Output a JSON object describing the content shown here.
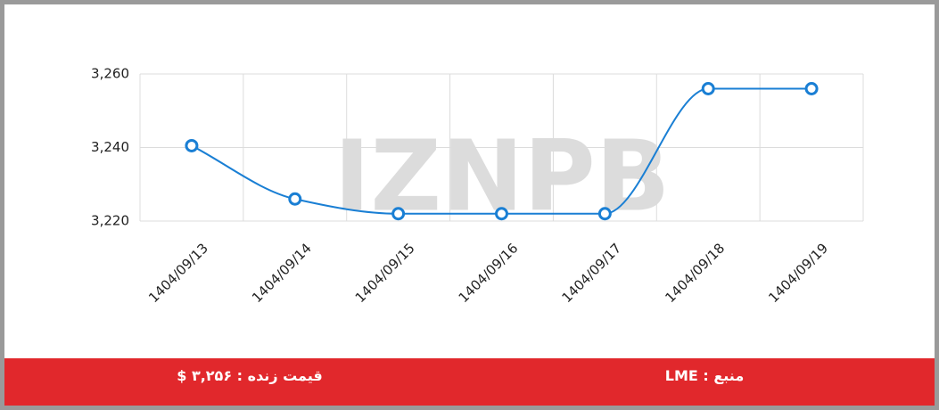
{
  "chart_data": {
    "type": "line",
    "categories": [
      "1404/09/13",
      "1404/09/14",
      "1404/09/15",
      "1404/09/16",
      "1404/09/17",
      "1404/09/18",
      "1404/09/19"
    ],
    "series": [
      {
        "color": "#1a7fd4",
        "values": [
          3240.5,
          3226,
          3222,
          3222,
          3222,
          3256,
          3256
        ]
      }
    ],
    "ylim": [
      3220,
      3260
    ],
    "yticks": [
      {
        "value": 3220,
        "label": "3,220"
      },
      {
        "value": 3240,
        "label": "3,240"
      },
      {
        "value": 3260,
        "label": "3,260"
      }
    ],
    "grid": true
  },
  "watermark": "IZNPB",
  "footer": {
    "price": "قیمت زنده : ۳,۲۵۶ $",
    "source": "منبع : LME"
  }
}
